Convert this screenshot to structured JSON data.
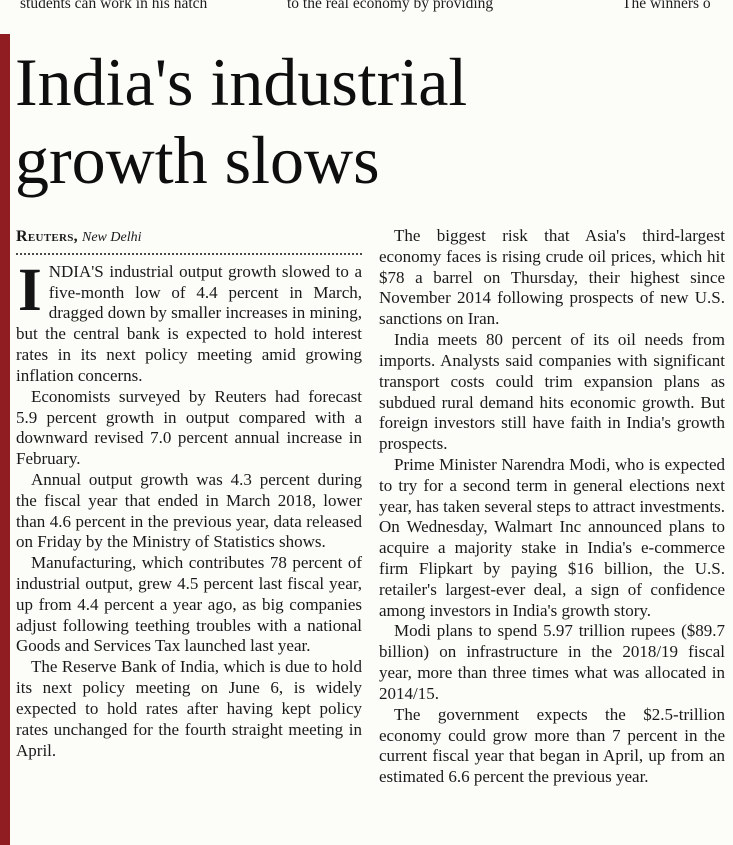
{
  "colors": {
    "accent_bar": "#8f1d21",
    "paper": "#fcfcf9",
    "text": "#1a1a1a"
  },
  "top_strip": {
    "fragment_left": "students can work in his hatch",
    "fragment_center": "to the real economy by providing",
    "fragment_right": "The winners o"
  },
  "article": {
    "headline": "India's industrial growth slows",
    "byline": {
      "source": "Reuters,",
      "location": "New Delhi"
    },
    "lead": {
      "dropcap": "I",
      "text": "NDIA'S industrial output growth slowed to a five-month low of 4.4 percent in March, dragged down by smaller increases in mining, but the central bank is expected to hold interest rates in its next policy meeting amid growing inflation concerns."
    },
    "col1_paragraphs": [
      "Economists surveyed by Reuters had forecast 5.9 percent growth in output compared with a downward revised 7.0 percent annual increase in February.",
      "Annual output growth was 4.3 percent during the fiscal year that ended in March 2018, lower than 4.6 percent in the previous year, data released on Friday by the Ministry of Statistics shows.",
      "Manufacturing, which contributes 78 percent of industrial output, grew 4.5 percent last fiscal year, up from 4.4 percent a year ago, as big companies adjust following teething troubles with a national Goods and Services Tax launched last year.",
      "The Reserve Bank of India, which is due to hold its next policy meeting on June 6, is widely expected to hold rates after having kept policy rates unchanged for the fourth straight meeting in April."
    ],
    "col2_paragraphs": [
      "The biggest risk that Asia's third-largest economy faces is rising crude oil prices, which hit $78 a barrel on Thursday, their highest since November 2014 following prospects of new U.S. sanctions on Iran.",
      "India meets 80 percent of its oil needs from imports. Analysts said companies with significant transport costs could trim expansion plans as subdued rural demand hits economic growth. But foreign investors still have faith in India's growth prospects.",
      "Prime Minister Narendra Modi, who is expected to try for a second term in general elections next year, has taken several steps to attract investments. On Wednesday, Walmart Inc announced plans to acquire a majority stake in India's e-commerce firm Flipkart by paying $16 billion, the U.S. retailer's largest-ever deal, a sign of confidence among investors in India's growth story.",
      "Modi plans to spend 5.97 trillion rupees ($89.7 billion) on infrastructure in the 2018/19 fiscal year, more than three times what was allocated in 2014/15.",
      "The government expects the $2.5-trillion economy could grow more than 7 percent in the current fiscal year that began in April, up from an estimated 6.6 percent the previous year."
    ]
  }
}
